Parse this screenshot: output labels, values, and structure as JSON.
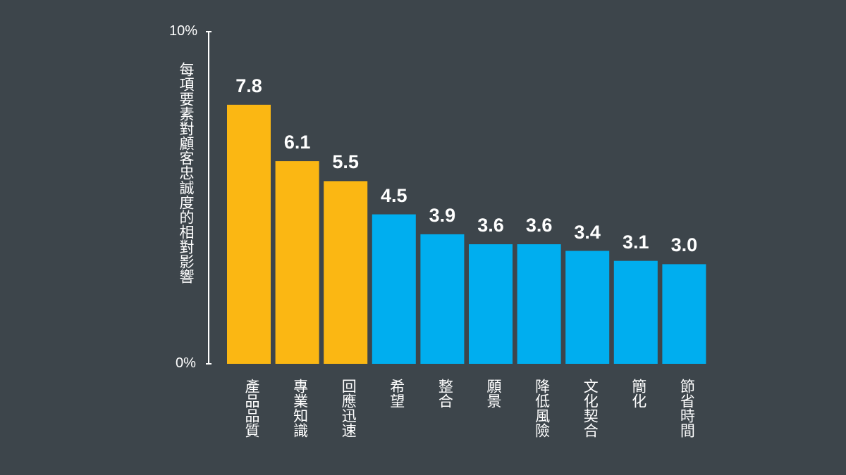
{
  "chart_data": {
    "type": "bar",
    "title": "",
    "xlabel": "",
    "ylabel": "每項要素對顧客忠誠度的相對影響",
    "ylim": [
      0,
      10
    ],
    "y_tick_labels": [
      "10%",
      "0%"
    ],
    "grid": false,
    "categories": [
      "產品品質",
      "專業知識",
      "回應迅速",
      "希望",
      "整合",
      "願景",
      "降低風險",
      "文化契合",
      "簡化",
      "節省時間"
    ],
    "values": [
      7.8,
      6.1,
      5.5,
      4.5,
      3.9,
      3.6,
      3.6,
      3.4,
      3.1,
      3.0
    ],
    "value_labels": [
      "7.8",
      "6.1",
      "5.5",
      "4.5",
      "3.9",
      "3.6",
      "3.6",
      "3.4",
      "3.1",
      "3.0"
    ],
    "highlight_count": 3,
    "colors": {
      "highlight": "#fbb713",
      "default": "#00aeef",
      "axis": "#ffffff",
      "background": "#3d454b"
    }
  }
}
